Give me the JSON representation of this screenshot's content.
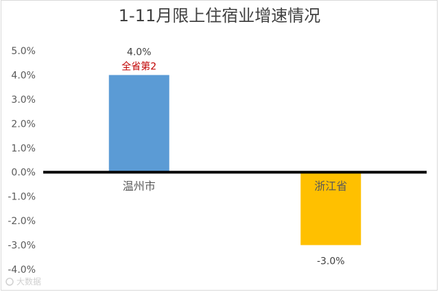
{
  "chart_data": {
    "type": "bar",
    "title": "1-11月限上住宿业增速情况",
    "categories": [
      "温州市",
      "浙江省"
    ],
    "values": [
      4.0,
      -3.0
    ],
    "data_labels": [
      "4.0%",
      "-3.0%"
    ],
    "annotations": [
      {
        "category": "温州市",
        "text": "全省第2",
        "color": "#c00000"
      }
    ],
    "bar_colors": [
      "#5b9bd5",
      "#ffc000"
    ],
    "ylim": [
      -4.0,
      5.0
    ],
    "yticks": [
      5.0,
      4.0,
      3.0,
      2.0,
      1.0,
      0.0,
      -1.0,
      -2.0,
      -3.0,
      -4.0
    ],
    "ytick_labels": [
      "5.0%",
      "4.0%",
      "3.0%",
      "2.0%",
      "1.0%",
      "0.0%",
      "-1.0%",
      "-2.0%",
      "-3.0%",
      "-4.0%"
    ],
    "xlabel": "",
    "ylabel": "",
    "grid": false,
    "legend": "none"
  },
  "watermark": "大数据"
}
